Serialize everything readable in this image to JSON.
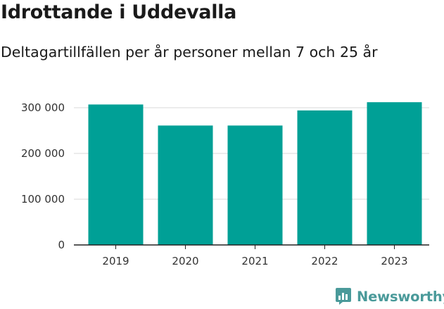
{
  "header": {
    "title": "Idrottande i Uddevalla",
    "subtitle": "Deltagartillfällen per år personer mellan 7 och 25 år"
  },
  "brand": {
    "name": "Newsworthy"
  },
  "colors": {
    "bar": "#00a096",
    "grid": "#d8d8d8",
    "axis": "#222222",
    "brand": "#4a9a9a"
  },
  "chart_data": {
    "type": "bar",
    "title": "Idrottande i Uddevalla",
    "subtitle": "Deltagartillfällen per år personer mellan 7 och 25 år",
    "xlabel": "",
    "ylabel": "",
    "categories": [
      "2019",
      "2020",
      "2021",
      "2022",
      "2023"
    ],
    "values": [
      307000,
      261000,
      261000,
      294000,
      312000
    ],
    "ylim": [
      0,
      330000
    ],
    "yticks": [
      0,
      100000,
      200000,
      300000
    ],
    "ytick_labels": [
      "0",
      "100 000",
      "200 000",
      "300 000"
    ],
    "grid": true,
    "legend": "none"
  }
}
